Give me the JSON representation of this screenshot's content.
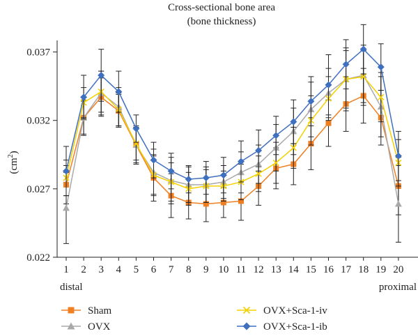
{
  "chart_data": {
    "type": "line",
    "title": "Cross-sectional bone area",
    "subtitle": "(bone thickness)",
    "ylabel_base": "(cm",
    "ylabel_sup": "2",
    "ylabel_close": ")",
    "xlabel": "",
    "x": [
      "1",
      "2",
      "3",
      "4",
      "5",
      "6",
      "7",
      "8",
      "9",
      "10",
      "11",
      "12",
      "13",
      "14",
      "15",
      "16",
      "17",
      "18",
      "19",
      "20"
    ],
    "x_end_labels": {
      "left": "distal",
      "right": "proximal"
    },
    "ylim": [
      0.022,
      0.04
    ],
    "yticks": [
      0.022,
      0.027,
      0.032,
      0.037
    ],
    "ytick_labels": [
      "0.022",
      "0.027",
      "0.032",
      "0.037"
    ],
    "grid": false,
    "legend_position": "bottom",
    "series": [
      {
        "name": "Sham",
        "color": "#f07f22",
        "marker": "square",
        "values": [
          0.0273,
          0.0322,
          0.0337,
          0.0327,
          0.0302,
          0.0278,
          0.0265,
          0.026,
          0.0259,
          0.026,
          0.0261,
          0.0272,
          0.0285,
          0.0288,
          0.0303,
          0.0318,
          0.0332,
          0.0338,
          0.0322,
          0.0272
        ],
        "errors": [
          0.0014,
          0.0012,
          0.0014,
          0.0012,
          0.0013,
          0.0017,
          0.0016,
          0.0012,
          0.0013,
          0.0011,
          0.0014,
          0.0014,
          0.0015,
          0.0015,
          0.0019,
          0.0017,
          0.002,
          0.002,
          0.002,
          0.0021
        ]
      },
      {
        "name": "OVX",
        "color": "#a9a9a9",
        "marker": "triangle",
        "values": [
          0.0256,
          0.0322,
          0.034,
          0.033,
          0.0302,
          0.0282,
          0.0276,
          0.0273,
          0.0273,
          0.0275,
          0.0282,
          0.0288,
          0.03,
          0.0312,
          0.0328,
          0.034,
          0.035,
          0.0353,
          0.033,
          0.0259
        ],
        "errors": [
          0.0026,
          0.0013,
          0.0016,
          0.0014,
          0.0014,
          0.0017,
          0.0017,
          0.0013,
          0.0013,
          0.0012,
          0.0015,
          0.0014,
          0.0017,
          0.0017,
          0.002,
          0.0018,
          0.0023,
          0.0022,
          0.0022,
          0.0028
        ]
      },
      {
        "name": "OVX+Sca-1-iv",
        "color": "#f5d000",
        "marker": "x",
        "values": [
          0.0278,
          0.0333,
          0.0341,
          0.0328,
          0.0303,
          0.028,
          0.0275,
          0.027,
          0.0272,
          0.0272,
          0.0275,
          0.0281,
          0.0289,
          0.03,
          0.032,
          0.0336,
          0.035,
          0.0352,
          0.0337,
          0.0289
        ],
        "errors": [
          0.0013,
          0.0011,
          0.0015,
          0.0012,
          0.0012,
          0.0014,
          0.0014,
          0.0012,
          0.0012,
          0.0011,
          0.0013,
          0.0013,
          0.0015,
          0.0015,
          0.0018,
          0.0016,
          0.0021,
          0.0019,
          0.0018,
          0.0017
        ]
      },
      {
        "name": "OVX+Sca-1-ib",
        "color": "#3f6fbf",
        "marker": "diamond",
        "values": [
          0.0283,
          0.0337,
          0.0353,
          0.0341,
          0.0314,
          0.0291,
          0.0283,
          0.0277,
          0.0278,
          0.028,
          0.029,
          0.0298,
          0.0309,
          0.0319,
          0.0334,
          0.0346,
          0.0361,
          0.0372,
          0.0359,
          0.0294
        ],
        "errors": [
          0.0018,
          0.0016,
          0.0019,
          0.0015,
          0.001,
          0.0013,
          0.0013,
          0.001,
          0.0012,
          0.0013,
          0.0015,
          0.0015,
          0.0014,
          0.0016,
          0.0018,
          0.0022,
          0.0018,
          0.0018,
          0.0017,
          0.0018
        ]
      }
    ]
  }
}
